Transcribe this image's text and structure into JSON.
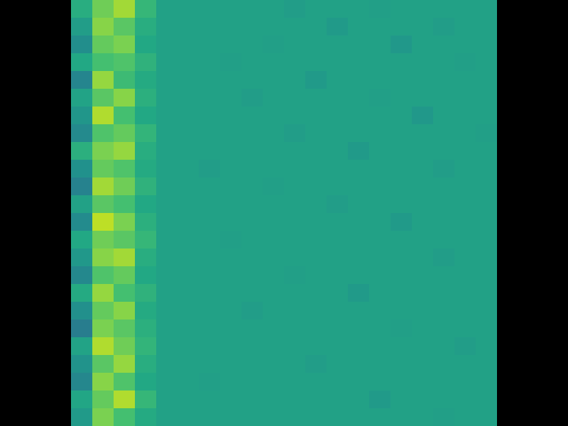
{
  "chart_data": {
    "type": "heatmap",
    "tick_labels": false,
    "xlim": [
      0,
      20
    ],
    "ylim": [
      0,
      24
    ],
    "color_range": [
      0,
      1
    ],
    "cells": [
      [
        0.62,
        0.78,
        0.86,
        0.66,
        0.57,
        0.57,
        0.57,
        0.57,
        0.57,
        0.57,
        0.55,
        0.57,
        0.57,
        0.57,
        0.56,
        0.57,
        0.57,
        0.57,
        0.57,
        0.57
      ],
      [
        0.55,
        0.82,
        0.74,
        0.62,
        0.57,
        0.57,
        0.57,
        0.57,
        0.57,
        0.57,
        0.57,
        0.57,
        0.54,
        0.57,
        0.57,
        0.57,
        0.57,
        0.55,
        0.57,
        0.57
      ],
      [
        0.48,
        0.76,
        0.8,
        0.6,
        0.57,
        0.57,
        0.57,
        0.57,
        0.57,
        0.56,
        0.57,
        0.57,
        0.57,
        0.57,
        0.57,
        0.53,
        0.57,
        0.57,
        0.57,
        0.57
      ],
      [
        0.6,
        0.7,
        0.72,
        0.64,
        0.57,
        0.57,
        0.57,
        0.56,
        0.57,
        0.57,
        0.57,
        0.57,
        0.57,
        0.57,
        0.57,
        0.57,
        0.57,
        0.57,
        0.56,
        0.57
      ],
      [
        0.42,
        0.84,
        0.68,
        0.61,
        0.57,
        0.57,
        0.57,
        0.57,
        0.57,
        0.57,
        0.57,
        0.54,
        0.57,
        0.57,
        0.57,
        0.57,
        0.57,
        0.57,
        0.57,
        0.57
      ],
      [
        0.58,
        0.74,
        0.82,
        0.63,
        0.57,
        0.57,
        0.57,
        0.57,
        0.55,
        0.57,
        0.57,
        0.57,
        0.57,
        0.57,
        0.56,
        0.57,
        0.57,
        0.57,
        0.57,
        0.57
      ],
      [
        0.52,
        0.88,
        0.7,
        0.6,
        0.57,
        0.57,
        0.57,
        0.57,
        0.57,
        0.57,
        0.57,
        0.57,
        0.57,
        0.57,
        0.57,
        0.57,
        0.53,
        0.57,
        0.57,
        0.57
      ],
      [
        0.45,
        0.72,
        0.76,
        0.65,
        0.57,
        0.57,
        0.57,
        0.57,
        0.57,
        0.57,
        0.55,
        0.57,
        0.57,
        0.57,
        0.57,
        0.57,
        0.57,
        0.57,
        0.57,
        0.56
      ],
      [
        0.63,
        0.8,
        0.84,
        0.62,
        0.57,
        0.57,
        0.57,
        0.57,
        0.57,
        0.57,
        0.57,
        0.57,
        0.57,
        0.54,
        0.57,
        0.57,
        0.57,
        0.57,
        0.57,
        0.57
      ],
      [
        0.5,
        0.76,
        0.72,
        0.61,
        0.57,
        0.57,
        0.55,
        0.57,
        0.57,
        0.57,
        0.57,
        0.57,
        0.57,
        0.57,
        0.57,
        0.57,
        0.57,
        0.55,
        0.57,
        0.57
      ],
      [
        0.4,
        0.86,
        0.78,
        0.64,
        0.57,
        0.57,
        0.57,
        0.57,
        0.57,
        0.56,
        0.57,
        0.57,
        0.57,
        0.57,
        0.57,
        0.57,
        0.57,
        0.57,
        0.57,
        0.57
      ],
      [
        0.57,
        0.74,
        0.7,
        0.6,
        0.57,
        0.57,
        0.57,
        0.57,
        0.57,
        0.57,
        0.57,
        0.57,
        0.55,
        0.57,
        0.57,
        0.57,
        0.57,
        0.57,
        0.57,
        0.57
      ],
      [
        0.46,
        0.9,
        0.8,
        0.63,
        0.57,
        0.57,
        0.57,
        0.57,
        0.57,
        0.57,
        0.57,
        0.57,
        0.57,
        0.57,
        0.57,
        0.54,
        0.57,
        0.57,
        0.57,
        0.57
      ],
      [
        0.6,
        0.78,
        0.74,
        0.66,
        0.57,
        0.57,
        0.57,
        0.56,
        0.57,
        0.57,
        0.57,
        0.57,
        0.57,
        0.57,
        0.57,
        0.57,
        0.57,
        0.57,
        0.57,
        0.57
      ],
      [
        0.53,
        0.82,
        0.86,
        0.62,
        0.57,
        0.57,
        0.57,
        0.57,
        0.57,
        0.57,
        0.57,
        0.57,
        0.57,
        0.57,
        0.57,
        0.57,
        0.57,
        0.55,
        0.57,
        0.57
      ],
      [
        0.44,
        0.72,
        0.76,
        0.6,
        0.57,
        0.57,
        0.57,
        0.57,
        0.57,
        0.57,
        0.56,
        0.57,
        0.57,
        0.57,
        0.57,
        0.57,
        0.57,
        0.57,
        0.57,
        0.57
      ],
      [
        0.61,
        0.84,
        0.7,
        0.64,
        0.57,
        0.57,
        0.57,
        0.57,
        0.57,
        0.57,
        0.57,
        0.57,
        0.57,
        0.54,
        0.57,
        0.57,
        0.57,
        0.57,
        0.57,
        0.57
      ],
      [
        0.49,
        0.76,
        0.82,
        0.61,
        0.57,
        0.57,
        0.57,
        0.57,
        0.55,
        0.57,
        0.57,
        0.57,
        0.57,
        0.57,
        0.57,
        0.57,
        0.57,
        0.57,
        0.57,
        0.57
      ],
      [
        0.38,
        0.8,
        0.74,
        0.63,
        0.57,
        0.57,
        0.57,
        0.57,
        0.57,
        0.57,
        0.57,
        0.57,
        0.57,
        0.57,
        0.57,
        0.56,
        0.57,
        0.57,
        0.57,
        0.57
      ],
      [
        0.58,
        0.88,
        0.78,
        0.65,
        0.57,
        0.57,
        0.57,
        0.57,
        0.57,
        0.57,
        0.57,
        0.57,
        0.57,
        0.57,
        0.57,
        0.57,
        0.57,
        0.57,
        0.55,
        0.57
      ],
      [
        0.51,
        0.74,
        0.84,
        0.62,
        0.57,
        0.57,
        0.57,
        0.57,
        0.57,
        0.57,
        0.57,
        0.55,
        0.57,
        0.57,
        0.57,
        0.57,
        0.57,
        0.57,
        0.57,
        0.57
      ],
      [
        0.43,
        0.82,
        0.72,
        0.6,
        0.57,
        0.57,
        0.56,
        0.57,
        0.57,
        0.57,
        0.57,
        0.57,
        0.57,
        0.57,
        0.57,
        0.57,
        0.57,
        0.57,
        0.57,
        0.57
      ],
      [
        0.59,
        0.76,
        0.88,
        0.66,
        0.57,
        0.57,
        0.57,
        0.57,
        0.57,
        0.57,
        0.57,
        0.57,
        0.57,
        0.57,
        0.54,
        0.57,
        0.57,
        0.57,
        0.57,
        0.57
      ],
      [
        0.54,
        0.8,
        0.7,
        0.61,
        0.57,
        0.57,
        0.57,
        0.57,
        0.57,
        0.57,
        0.57,
        0.57,
        0.57,
        0.57,
        0.57,
        0.57,
        0.57,
        0.56,
        0.57,
        0.57
      ]
    ]
  }
}
